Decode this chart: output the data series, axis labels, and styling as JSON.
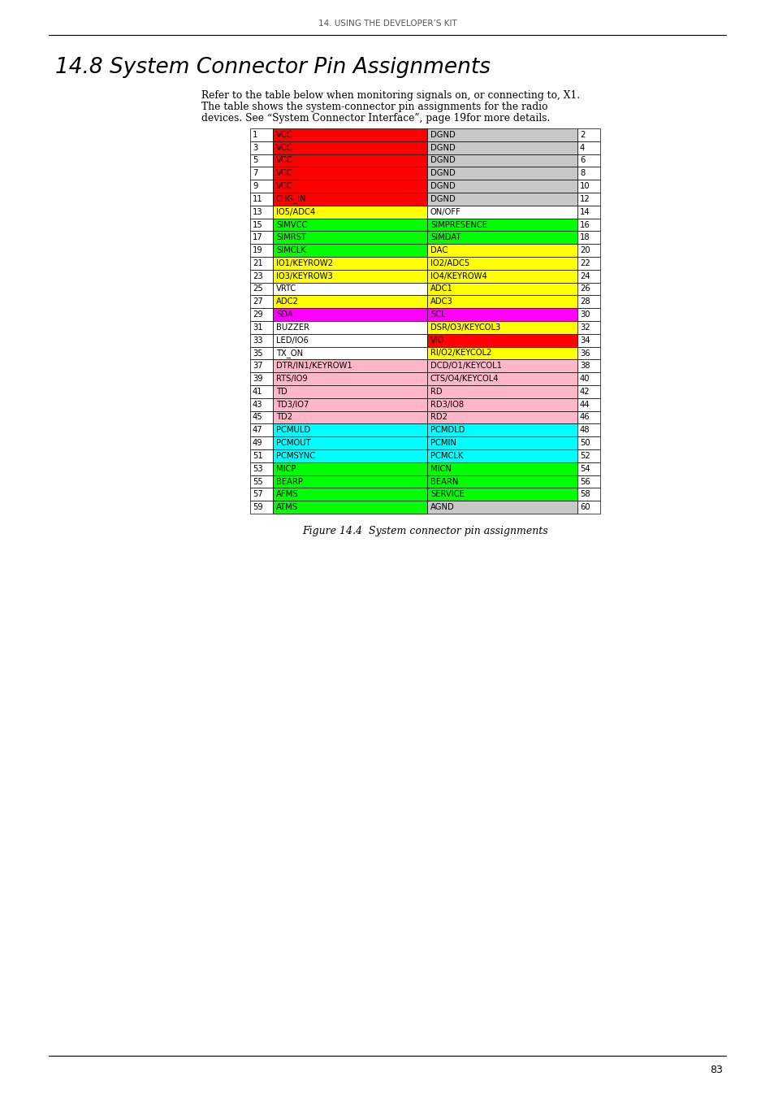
{
  "header_text": "14. USING THE DEVELOPER’S KIT",
  "title": "14.8 System Connector Pin Assignments",
  "body_text_1": "Refer to the table below when monitoring signals on, or connecting to, X1.",
  "body_text_2": "The table shows the system-connector pin assignments for the radio",
  "body_text_3": "devices. See “System Connector Interface”, page 19for more details.",
  "caption": "Figure 14.4  System connector pin assignments",
  "page_number": "83",
  "table_rows": [
    {
      "pin_l": "1",
      "label_l": "VCC",
      "color_l": "#ff0000",
      "label_r": "DGND",
      "color_r": "#c8c8c8",
      "pin_r": "2"
    },
    {
      "pin_l": "3",
      "label_l": "VCC",
      "color_l": "#ff0000",
      "label_r": "DGND",
      "color_r": "#c8c8c8",
      "pin_r": "4"
    },
    {
      "pin_l": "5",
      "label_l": "VCC",
      "color_l": "#ff0000",
      "label_r": "DGND",
      "color_r": "#c8c8c8",
      "pin_r": "6"
    },
    {
      "pin_l": "7",
      "label_l": "VCC",
      "color_l": "#ff0000",
      "label_r": "DGND",
      "color_r": "#c8c8c8",
      "pin_r": "8"
    },
    {
      "pin_l": "9",
      "label_l": "VCC",
      "color_l": "#ff0000",
      "label_r": "DGND",
      "color_r": "#c8c8c8",
      "pin_r": "10"
    },
    {
      "pin_l": "11",
      "label_l": "CHG_IN",
      "color_l": "#ff0000",
      "label_r": "DGND",
      "color_r": "#c8c8c8",
      "pin_r": "12"
    },
    {
      "pin_l": "13",
      "label_l": "IO5/ADC4",
      "color_l": "#ffff00",
      "label_r": "ON/OFF",
      "color_r": "#ffffff",
      "pin_r": "14"
    },
    {
      "pin_l": "15",
      "label_l": "SIMVCC",
      "color_l": "#00ff00",
      "label_r": "SIMPRESENCE",
      "color_r": "#00ff00",
      "pin_r": "16"
    },
    {
      "pin_l": "17",
      "label_l": "SIMRST",
      "color_l": "#00ff00",
      "label_r": "SIMDAT",
      "color_r": "#00ff00",
      "pin_r": "18"
    },
    {
      "pin_l": "19",
      "label_l": "SIMCLK",
      "color_l": "#00ff00",
      "label_r": "DAC",
      "color_r": "#ffff00",
      "pin_r": "20"
    },
    {
      "pin_l": "21",
      "label_l": "IO1/KEYROW2",
      "color_l": "#ffff00",
      "label_r": "IO2/ADC5",
      "color_r": "#ffff00",
      "pin_r": "22"
    },
    {
      "pin_l": "23",
      "label_l": "IO3/KEYROW3",
      "color_l": "#ffff00",
      "label_r": "IO4/KEYROW4",
      "color_r": "#ffff00",
      "pin_r": "24"
    },
    {
      "pin_l": "25",
      "label_l": "VRTC",
      "color_l": "#ffffff",
      "label_r": "ADC1",
      "color_r": "#ffff00",
      "pin_r": "26"
    },
    {
      "pin_l": "27",
      "label_l": "ADC2",
      "color_l": "#ffff00",
      "label_r": "ADC3",
      "color_r": "#ffff00",
      "pin_r": "28"
    },
    {
      "pin_l": "29",
      "label_l": "SDA",
      "color_l": "#ff00ff",
      "label_r": "SCL",
      "color_r": "#ff00ff",
      "pin_r": "30"
    },
    {
      "pin_l": "31",
      "label_l": "BUZZER",
      "color_l": "#ffffff",
      "label_r": "DSR/O3/KEYCOL3",
      "color_r": "#ffff00",
      "pin_r": "32"
    },
    {
      "pin_l": "33",
      "label_l": "LED/IO6",
      "color_l": "#ffffff",
      "label_r": "VIO",
      "color_r": "#ff0000",
      "pin_r": "34"
    },
    {
      "pin_l": "35",
      "label_l": "TX_ON",
      "color_l": "#ffffff",
      "label_r": "RI/O2/KEYCOL2",
      "color_r": "#ffff00",
      "pin_r": "36"
    },
    {
      "pin_l": "37",
      "label_l": "DTR/IN1/KEYROW1",
      "color_l": "#ffb6c8",
      "label_r": "DCD/O1/KEYCOL1",
      "color_r": "#ffb6c8",
      "pin_r": "38"
    },
    {
      "pin_l": "39",
      "label_l": "RTS/IO9",
      "color_l": "#ffb6c8",
      "label_r": "CTS/O4/KEYCOL4",
      "color_r": "#ffb6c8",
      "pin_r": "40"
    },
    {
      "pin_l": "41",
      "label_l": "TD",
      "color_l": "#ffb6c8",
      "label_r": "RD",
      "color_r": "#ffb6c8",
      "pin_r": "42"
    },
    {
      "pin_l": "43",
      "label_l": "TD3/IO7",
      "color_l": "#ffb6c8",
      "label_r": "RD3/IO8",
      "color_r": "#ffb6c8",
      "pin_r": "44"
    },
    {
      "pin_l": "45",
      "label_l": "TD2",
      "color_l": "#ffb6c8",
      "label_r": "RD2",
      "color_r": "#ffb6c8",
      "pin_r": "46"
    },
    {
      "pin_l": "47",
      "label_l": "PCMULD",
      "color_l": "#00ffff",
      "label_r": "PCMDLD",
      "color_r": "#00ffff",
      "pin_r": "48"
    },
    {
      "pin_l": "49",
      "label_l": "PCMOUT",
      "color_l": "#00ffff",
      "label_r": "PCMIN",
      "color_r": "#00ffff",
      "pin_r": "50"
    },
    {
      "pin_l": "51",
      "label_l": "PCMSYNC",
      "color_l": "#00ffff",
      "label_r": "PCMCLK",
      "color_r": "#00ffff",
      "pin_r": "52"
    },
    {
      "pin_l": "53",
      "label_l": "MICP",
      "color_l": "#00ff00",
      "label_r": "MICN",
      "color_r": "#00ff00",
      "pin_r": "54"
    },
    {
      "pin_l": "55",
      "label_l": "BEARP",
      "color_l": "#00ff00",
      "label_r": "BEARN",
      "color_r": "#00ff00",
      "pin_r": "56"
    },
    {
      "pin_l": "57",
      "label_l": "AFMS",
      "color_l": "#00ff00",
      "label_r": "SERVICE",
      "color_r": "#00ff00",
      "pin_r": "58"
    },
    {
      "pin_l": "59",
      "label_l": "ATMS",
      "color_l": "#00ff00",
      "label_r": "AGND",
      "color_r": "#c8c8c8",
      "pin_r": "60"
    }
  ],
  "bg_color": "#ffffff"
}
